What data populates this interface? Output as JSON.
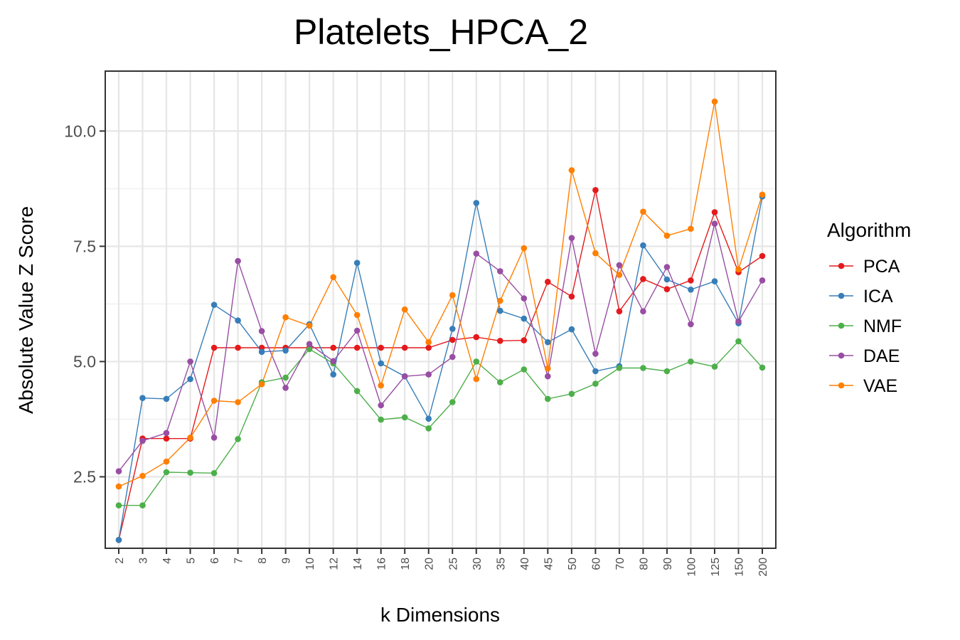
{
  "chart_data": {
    "type": "line",
    "title": "Platelets_HPCA_2",
    "xlabel": "k Dimensions",
    "ylabel": "Absolute Value Z Score",
    "categories": [
      "2",
      "3",
      "4",
      "5",
      "6",
      "7",
      "8",
      "9",
      "10",
      "12",
      "14",
      "16",
      "18",
      "20",
      "25",
      "30",
      "35",
      "40",
      "45",
      "50",
      "60",
      "70",
      "80",
      "90",
      "100",
      "125",
      "150",
      "200"
    ],
    "y_ticks": [
      2.5,
      5.0,
      7.5,
      10.0
    ],
    "y_tick_labels": [
      "2.5",
      "5.0",
      "7.5",
      "10.0"
    ],
    "ylim": [
      0.95,
      11.3
    ],
    "grid": true,
    "legend": {
      "title": "Algorithm",
      "position": "right"
    },
    "series": [
      {
        "name": "PCA",
        "color": "#e41a1c",
        "values": [
          1.13,
          3.33,
          3.33,
          3.33,
          5.3,
          5.3,
          5.3,
          5.3,
          5.3,
          5.3,
          5.3,
          5.3,
          5.3,
          5.3,
          5.47,
          5.53,
          5.45,
          5.46,
          6.73,
          6.41,
          8.72,
          6.09,
          6.79,
          6.57,
          6.76,
          8.24,
          6.94,
          7.29
        ]
      },
      {
        "name": "ICA",
        "color": "#377eb8",
        "values": [
          1.13,
          4.21,
          4.19,
          4.62,
          6.23,
          5.89,
          5.21,
          5.24,
          5.81,
          4.72,
          7.14,
          4.96,
          4.68,
          3.76,
          5.71,
          8.44,
          6.1,
          5.93,
          5.42,
          5.7,
          4.79,
          4.9,
          7.52,
          6.78,
          6.56,
          6.74,
          5.83,
          8.58
        ]
      },
      {
        "name": "NMF",
        "color": "#4daf4a",
        "values": [
          1.88,
          1.88,
          2.6,
          2.59,
          2.58,
          3.32,
          4.55,
          4.65,
          5.27,
          4.96,
          4.36,
          3.74,
          3.79,
          3.55,
          4.12,
          5.0,
          4.55,
          4.83,
          4.19,
          4.3,
          4.52,
          4.86,
          4.86,
          4.79,
          5.0,
          4.89,
          5.44,
          4.87
        ]
      },
      {
        "name": "DAE",
        "color": "#984ea3",
        "values": [
          2.62,
          3.28,
          3.45,
          5.0,
          3.35,
          7.18,
          5.66,
          4.43,
          5.38,
          5.01,
          5.67,
          4.05,
          4.68,
          4.72,
          5.1,
          7.34,
          6.96,
          6.37,
          4.68,
          7.68,
          5.17,
          7.09,
          6.09,
          7.05,
          5.81,
          7.99,
          5.87,
          6.76
        ]
      },
      {
        "name": "VAE",
        "color": "#ff7f00",
        "values": [
          2.29,
          2.52,
          2.83,
          3.35,
          4.15,
          4.12,
          4.51,
          5.96,
          5.78,
          6.83,
          6.01,
          4.48,
          6.13,
          5.42,
          6.44,
          4.62,
          6.32,
          7.46,
          4.85,
          9.15,
          7.35,
          6.88,
          8.25,
          7.73,
          7.88,
          10.64,
          7.0,
          8.62
        ]
      }
    ]
  }
}
